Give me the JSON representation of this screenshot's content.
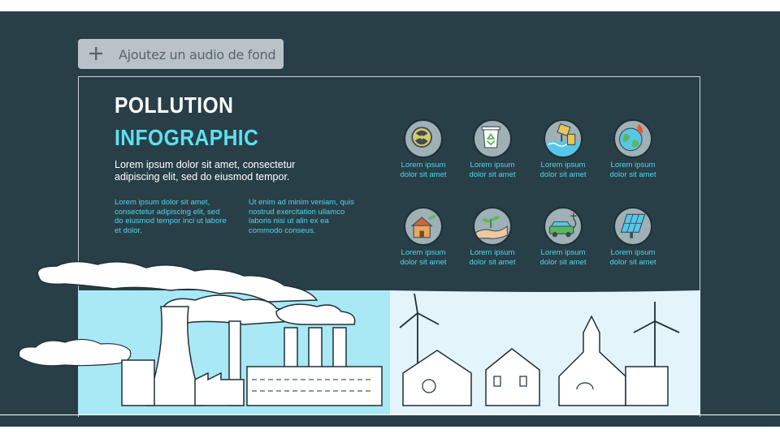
{
  "toolbar": {
    "audio_label": "Ajoutez un audio de fond",
    "audio_icon": "plus-icon"
  },
  "slide": {
    "title_line1": "POLLUTION",
    "title_line2": "INFOGRAPHIC",
    "lead": "Lorem ipsum dolor sit amet, consectetur adipiscing elit, sed do eiusmod tempor.",
    "col1": "Lorem ipsum dolor sit amet, consectetur adipiscing elit, sed do eiusmod tempor inci ut labore et dolor.",
    "col2": "Ut enim ad minim veniam, quis nostrud exercitation ullamco laboris nisi ut alin ex ea commodo conseus.",
    "icons": [
      {
        "name": "radioactive-icon",
        "l1": "Lorem ipsum",
        "l2": "dolor sit amet"
      },
      {
        "name": "recycle-bin-icon",
        "l1": "Lorem ipsum",
        "l2": "dolor sit amet"
      },
      {
        "name": "water-pollution-icon",
        "l1": "Lorem ipsum",
        "l2": "dolor sit amet"
      },
      {
        "name": "burning-earth-icon",
        "l1": "Lorem ipsum",
        "l2": "dolor sit amet"
      },
      {
        "name": "eco-house-icon",
        "l1": "Lorem ipsum",
        "l2": "dolor sit amet"
      },
      {
        "name": "plant-hand-icon",
        "l1": "Lorem ipsum",
        "l2": "dolor sit amet"
      },
      {
        "name": "electric-car-icon",
        "l1": "Lorem ipsum",
        "l2": "dolor sit amet"
      },
      {
        "name": "solar-panel-icon",
        "l1": "Lorem ipsum",
        "l2": "dolor sit amet"
      }
    ]
  },
  "colors": {
    "background": "#283f48",
    "accent": "#5ee0f0",
    "caption": "#4fd6ea",
    "sky_left": "#a9e8f5",
    "sky_right": "#e4f4fb"
  }
}
